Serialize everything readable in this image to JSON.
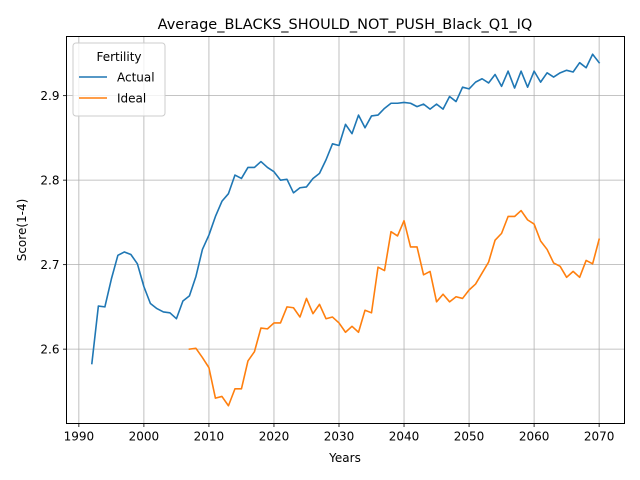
{
  "chart_data": {
    "type": "line",
    "title": "Average_BLACKS_SHOULD_NOT_PUSH_Black_Q1_IQ",
    "xlabel": "Years",
    "ylabel": "Score(1-4)",
    "xlim": [
      1988.1,
      2073.9
    ],
    "ylim": [
      2.512,
      2.97
    ],
    "xticks": [
      1990,
      2000,
      2010,
      2020,
      2030,
      2040,
      2050,
      2060,
      2070
    ],
    "xtick_labels": [
      "1990",
      "2000",
      "2010",
      "2020",
      "2030",
      "2040",
      "2050",
      "2060",
      "2070"
    ],
    "yticks": [
      2.6,
      2.7,
      2.8,
      2.9
    ],
    "ytick_labels": [
      "2.6",
      "2.7",
      "2.8",
      "2.9"
    ],
    "grid": true,
    "legend": {
      "title": "Fertility",
      "placement": "top-left"
    },
    "series": [
      {
        "name": "Actual",
        "color": "#1f77b4",
        "x": [
          1992,
          1993,
          1994,
          1995,
          1996,
          1997,
          1998,
          1999,
          2000,
          2001,
          2002,
          2003,
          2004,
          2005,
          2006,
          2007,
          2008,
          2009,
          2010,
          2011,
          2012,
          2013,
          2014,
          2015,
          2016,
          2017,
          2018,
          2019,
          2020,
          2021,
          2022,
          2023,
          2024,
          2025,
          2026,
          2027,
          2028,
          2029,
          2030,
          2031,
          2032,
          2033,
          2034,
          2035,
          2036,
          2037,
          2038,
          2039,
          2040,
          2041,
          2042,
          2043,
          2044,
          2045,
          2046,
          2047,
          2048,
          2049,
          2050,
          2051,
          2052,
          2053,
          2054,
          2055,
          2056,
          2057,
          2058,
          2059,
          2060,
          2061,
          2062,
          2063,
          2064,
          2065,
          2066,
          2067,
          2068,
          2069,
          2070
        ],
        "values": [
          2.583,
          2.651,
          2.65,
          2.683,
          2.711,
          2.715,
          2.712,
          2.701,
          2.674,
          2.654,
          2.648,
          2.644,
          2.643,
          2.636,
          2.657,
          2.663,
          2.686,
          2.718,
          2.735,
          2.757,
          2.775,
          2.784,
          2.806,
          2.802,
          2.815,
          2.815,
          2.822,
          2.815,
          2.81,
          2.8,
          2.801,
          2.785,
          2.791,
          2.792,
          2.802,
          2.808,
          2.824,
          2.843,
          2.841,
          2.866,
          2.855,
          2.877,
          2.862,
          2.876,
          2.877,
          2.885,
          2.891,
          2.891,
          2.892,
          2.891,
          2.887,
          2.89,
          2.884,
          2.89,
          2.884,
          2.899,
          2.893,
          2.91,
          2.908,
          2.916,
          2.92,
          2.915,
          2.925,
          2.911,
          2.929,
          2.909,
          2.929,
          2.91,
          2.929,
          2.916,
          2.927,
          2.922,
          2.927,
          2.93,
          2.928,
          2.939,
          2.933,
          2.949,
          2.939
        ]
      },
      {
        "name": "Ideal",
        "color": "#ff7f0e",
        "x": [
          2007,
          2008,
          2009,
          2010,
          2011,
          2012,
          2013,
          2014,
          2015,
          2016,
          2017,
          2018,
          2019,
          2020,
          2021,
          2022,
          2023,
          2024,
          2025,
          2026,
          2027,
          2028,
          2029,
          2030,
          2031,
          2032,
          2033,
          2034,
          2035,
          2036,
          2037,
          2038,
          2039,
          2040,
          2041,
          2042,
          2043,
          2044,
          2045,
          2046,
          2047,
          2048,
          2049,
          2050,
          2051,
          2052,
          2053,
          2054,
          2055,
          2056,
          2057,
          2058,
          2059,
          2060,
          2061,
          2062,
          2063,
          2064,
          2065,
          2066,
          2067,
          2068,
          2069,
          2070
        ],
        "values": [
          2.6,
          2.601,
          2.59,
          2.578,
          2.542,
          2.544,
          2.533,
          2.553,
          2.553,
          2.586,
          2.597,
          2.625,
          2.624,
          2.631,
          2.631,
          2.65,
          2.649,
          2.638,
          2.66,
          2.642,
          2.653,
          2.636,
          2.638,
          2.631,
          2.62,
          2.627,
          2.62,
          2.646,
          2.643,
          2.697,
          2.693,
          2.739,
          2.734,
          2.752,
          2.721,
          2.721,
          2.688,
          2.692,
          2.656,
          2.665,
          2.656,
          2.662,
          2.66,
          2.67,
          2.677,
          2.69,
          2.703,
          2.729,
          2.737,
          2.757,
          2.757,
          2.764,
          2.753,
          2.748,
          2.728,
          2.718,
          2.702,
          2.698,
          2.685,
          2.692,
          2.685,
          2.705,
          2.701,
          2.73
        ]
      }
    ]
  }
}
